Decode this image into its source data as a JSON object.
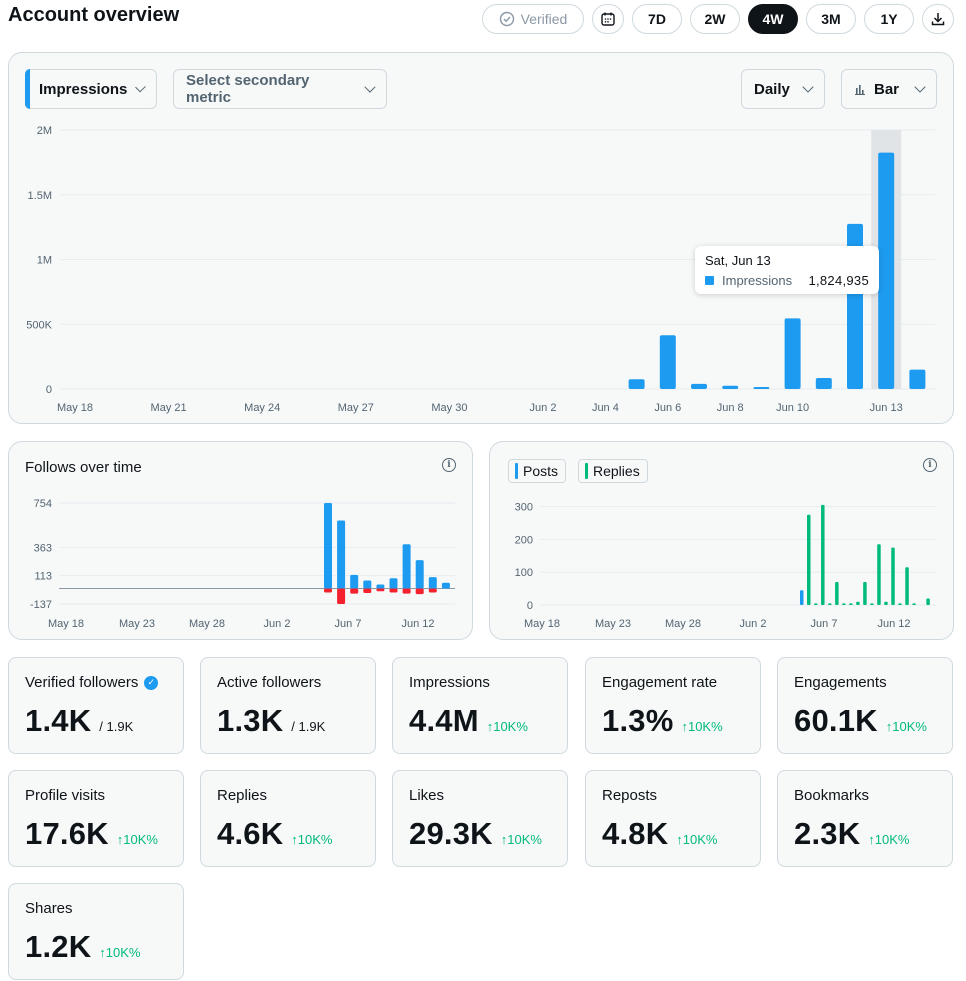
{
  "header": {
    "title": "Account overview",
    "verified_label": "Verified",
    "ranges": [
      "7D",
      "2W",
      "4W",
      "3M",
      "1Y"
    ],
    "active_range": "4W"
  },
  "main_chart": {
    "primary_metric": "Impressions",
    "secondary_placeholder": "Select secondary metric",
    "interval": "Daily",
    "chart_type_label": "Bar",
    "tooltip": {
      "date": "Sat, Jun 13",
      "series": "Impressions",
      "value": "1,824,935"
    }
  },
  "follows_card": {
    "title": "Follows over time"
  },
  "posts_card": {
    "legend": [
      "Posts",
      "Replies"
    ]
  },
  "stats": [
    {
      "label": "Verified followers",
      "value": "1.4K",
      "sub": "/ 1.9K",
      "verified_badge": true
    },
    {
      "label": "Active followers",
      "value": "1.3K",
      "sub": "/ 1.9K"
    },
    {
      "label": "Impressions",
      "value": "4.4M",
      "change": "↑10K%"
    },
    {
      "label": "Engagement rate",
      "value": "1.3%",
      "change": "↑10K%"
    },
    {
      "label": "Engagements",
      "value": "60.1K",
      "change": "↑10K%"
    },
    {
      "label": "Profile visits",
      "value": "17.6K",
      "change": "↑10K%"
    },
    {
      "label": "Replies",
      "value": "4.6K",
      "change": "↑10K%"
    },
    {
      "label": "Likes",
      "value": "29.3K",
      "change": "↑10K%"
    },
    {
      "label": "Reposts",
      "value": "4.8K",
      "change": "↑10K%"
    },
    {
      "label": "Bookmarks",
      "value": "2.3K",
      "change": "↑10K%"
    },
    {
      "label": "Shares",
      "value": "1.2K",
      "change": "↑10K%"
    }
  ],
  "colors": {
    "blue": "#1d9bf0",
    "green": "#00ba7c",
    "red": "#f4212e",
    "highlight": "#e1e4e6"
  },
  "chart_data": [
    {
      "type": "bar",
      "name": "impressions",
      "series": [
        {
          "name": "Impressions",
          "color": "#1d9bf0"
        }
      ],
      "categories": [
        "May 18",
        "May 19",
        "May 20",
        "May 21",
        "May 22",
        "May 23",
        "May 24",
        "May 25",
        "May 26",
        "May 27",
        "May 28",
        "May 29",
        "May 30",
        "May 31",
        "Jun 1",
        "Jun 2",
        "Jun 3",
        "Jun 4",
        "Jun 5",
        "Jun 6",
        "Jun 7",
        "Jun 8",
        "Jun 9",
        "Jun 10",
        "Jun 11",
        "Jun 12",
        "Jun 13",
        "Jun 14"
      ],
      "values": [
        0,
        0,
        0,
        0,
        0,
        0,
        0,
        0,
        0,
        0,
        0,
        0,
        0,
        0,
        0,
        0,
        0,
        0,
        75000,
        415000,
        40000,
        25000,
        15000,
        545000,
        85000,
        1275000,
        1824935,
        150000
      ],
      "x_tick_labels": [
        "May 18",
        "May 21",
        "May 24",
        "May 27",
        "May 30",
        "Jun 2",
        "Jun 4",
        "Jun 6",
        "Jun 8",
        "Jun 10",
        "Jun 13"
      ],
      "y_ticks": [
        0,
        500000,
        1000000,
        1500000,
        2000000
      ],
      "y_tick_labels": [
        "0",
        "500K",
        "1M",
        "1.5M",
        "2M"
      ],
      "ylim": [
        0,
        2000000
      ],
      "highlighted": "Jun 13",
      "grid": true
    },
    {
      "type": "bar",
      "name": "follows",
      "series": [
        {
          "name": "follows",
          "color": "#1d9bf0",
          "values": [
            0,
            0,
            0,
            0,
            0,
            0,
            0,
            0,
            0,
            0,
            0,
            0,
            0,
            0,
            0,
            0,
            0,
            0,
            0,
            0,
            754,
            600,
            120,
            70,
            35,
            90,
            390,
            250,
            100,
            50
          ]
        },
        {
          "name": "unfollows",
          "color": "#f4212e",
          "values": [
            0,
            0,
            0,
            0,
            0,
            0,
            0,
            0,
            0,
            0,
            0,
            0,
            0,
            0,
            0,
            0,
            0,
            0,
            0,
            0,
            -35,
            -137,
            -45,
            -40,
            -25,
            -35,
            -45,
            -50,
            -35,
            0
          ]
        }
      ],
      "x_tick_labels": [
        "May 18",
        "May 23",
        "May 28",
        "Jun 2",
        "Jun 7",
        "Jun 12"
      ],
      "y_ticks": [
        -137,
        113,
        363,
        754
      ],
      "ylim": [
        -137,
        754
      ],
      "grid": true
    },
    {
      "type": "bar",
      "name": "posts-replies",
      "series": [
        {
          "name": "Posts",
          "color": "#1d9bf0",
          "values": [
            0,
            0,
            0,
            0,
            0,
            0,
            0,
            0,
            0,
            0,
            0,
            0,
            0,
            0,
            0,
            0,
            0,
            0,
            0,
            0,
            0,
            0,
            0,
            0,
            0,
            0,
            0,
            0,
            0,
            0,
            0,
            0,
            0,
            0,
            0,
            0,
            0,
            45,
            0,
            0,
            0,
            0,
            0,
            0,
            0,
            0,
            0,
            0,
            0,
            0,
            0,
            0,
            0,
            0,
            0,
            0
          ]
        },
        {
          "name": "Replies",
          "color": "#00ba7c",
          "values": [
            0,
            0,
            0,
            0,
            0,
            0,
            0,
            0,
            0,
            0,
            0,
            0,
            0,
            0,
            0,
            0,
            0,
            0,
            0,
            0,
            0,
            0,
            0,
            0,
            0,
            0,
            0,
            0,
            0,
            0,
            0,
            0,
            0,
            0,
            0,
            0,
            0,
            0,
            275,
            5,
            305,
            5,
            70,
            5,
            5,
            10,
            70,
            5,
            185,
            10,
            175,
            5,
            115,
            5,
            0,
            20
          ]
        }
      ],
      "x_tick_labels": [
        "May 18",
        "May 23",
        "May 28",
        "Jun 2",
        "Jun 7",
        "Jun 12"
      ],
      "y_ticks": [
        0,
        100,
        200,
        300
      ],
      "ylim": [
        0,
        320
      ],
      "grid": true
    }
  ]
}
